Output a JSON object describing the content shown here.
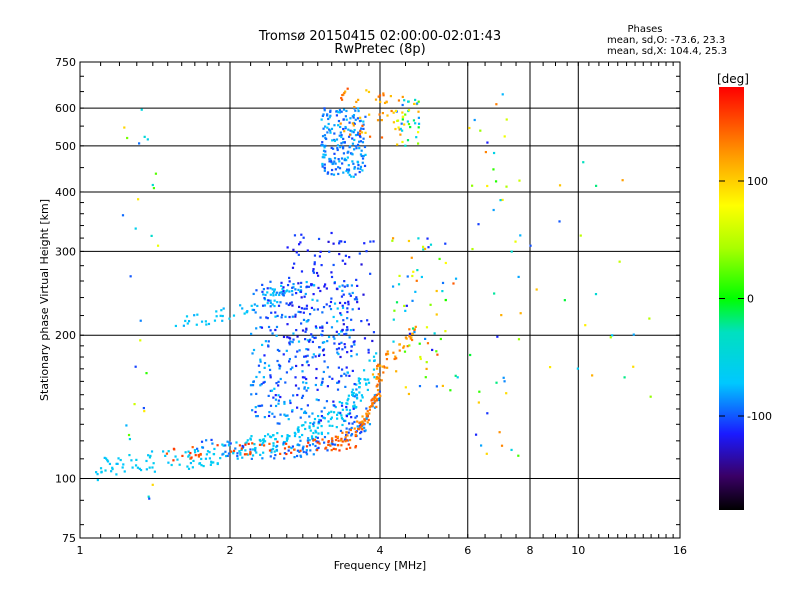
{
  "chart_data": {
    "type": "scatter",
    "title": "Tromsø 20150415 02:00:00-02:01:43",
    "subtitle": "RwPretec (8p)",
    "stats": {
      "heading": "Phases",
      "line_o": "mean, sd,O: -73.6, 23.3",
      "line_x": "mean, sd,X: 104.4, 25.3"
    },
    "xlabel": "Frequency [MHz]",
    "ylabel": "Stationary phase Virtual Height [km]",
    "x_scale": "log2",
    "y_scale": "log",
    "xlim": [
      1,
      16
    ],
    "ylim": [
      75,
      750
    ],
    "x_ticks": [
      1,
      2,
      4,
      6,
      8,
      10,
      16
    ],
    "y_ticks": [
      75,
      100,
      200,
      300,
      400,
      500,
      600,
      750
    ],
    "x_grid": [
      2,
      4,
      6,
      8,
      10
    ],
    "y_grid": [
      100,
      200,
      300,
      400,
      500,
      600
    ],
    "grid": true,
    "colorbar": {
      "label": "[deg]",
      "min": -180,
      "max": 180,
      "ticks": [
        100,
        0,
        -100
      ]
    },
    "clusters": [
      {
        "shape": "curve",
        "x": [
          1.05,
          1.3,
          1.6,
          1.9,
          2.2,
          2.5,
          2.8,
          3.1,
          3.4,
          3.7,
          3.85
        ],
        "y": [
          104,
          108,
          110,
          112,
          116,
          120,
          124,
          130,
          140,
          155,
          180
        ],
        "jx": 0.03,
        "jy": 0.05,
        "n": 260,
        "phase": [
          -75,
          -60
        ]
      },
      {
        "shape": "curve",
        "x": [
          1.7,
          2.2,
          2.7,
          3.0,
          3.3,
          3.6,
          3.8,
          4.0
        ],
        "y": [
          118,
          114,
          115,
          118,
          121,
          125,
          135,
          155
        ],
        "jx": 0.015,
        "jy": 0.04,
        "n": 120,
        "phase": [
          -110,
          -80
        ]
      },
      {
        "shape": "curve",
        "x": [
          1.5,
          1.8,
          2.2,
          2.7,
          3.0,
          3.3,
          3.6
        ],
        "y": [
          112,
          114,
          116,
          116,
          118,
          118,
          120
        ],
        "jx": 0.02,
        "jy": 0.03,
        "n": 70,
        "phase": [
          140,
          165
        ]
      },
      {
        "shape": "curve",
        "x": [
          3.2,
          3.4,
          3.6,
          3.8,
          3.95,
          4.05
        ],
        "y": [
          118,
          122,
          128,
          136,
          150,
          170
        ],
        "jx": 0.012,
        "jy": 0.03,
        "n": 80,
        "phase": [
          120,
          150
        ]
      },
      {
        "shape": "curve",
        "x": [
          3.9,
          4.1,
          4.3,
          4.5,
          4.7
        ],
        "y": [
          165,
          175,
          185,
          195,
          205
        ],
        "jx": 0.015,
        "jy": 0.03,
        "n": 40,
        "phase": [
          110,
          140
        ]
      },
      {
        "shape": "curve",
        "x": [
          1.5,
          1.7,
          1.9,
          2.1,
          2.3,
          2.5,
          2.7
        ],
        "y": [
          210,
          215,
          220,
          225,
          235,
          245,
          255
        ],
        "jx": 0.02,
        "jy": 0.03,
        "n": 60,
        "phase": [
          -80,
          -65
        ]
      },
      {
        "shape": "blob",
        "xc": [
          2.2,
          3.6
        ],
        "yc": [
          130,
          260
        ],
        "n": 380,
        "phase": [
          -120,
          -70
        ]
      },
      {
        "shape": "blob",
        "xc": [
          2.6,
          3.9
        ],
        "yc": [
          180,
          330
        ],
        "n": 120,
        "phase": [
          -125,
          -100
        ]
      },
      {
        "shape": "blob",
        "xc": [
          3.05,
          3.75
        ],
        "yc": [
          430,
          600
        ],
        "n": 200,
        "phase": [
          -105,
          -70
        ]
      },
      {
        "shape": "blob",
        "xc": [
          3.3,
          4.5
        ],
        "yc": [
          520,
          660
        ],
        "n": 50,
        "phase": [
          100,
          150
        ]
      },
      {
        "shape": "blob",
        "xc": [
          4.3,
          4.8
        ],
        "yc": [
          500,
          630
        ],
        "n": 40,
        "phase": [
          -100,
          120
        ]
      },
      {
        "shape": "blob",
        "xc": [
          4.2,
          5.8
        ],
        "yc": [
          150,
          320
        ],
        "n": 70,
        "phase": [
          -120,
          150
        ]
      },
      {
        "shape": "blob",
        "xc": [
          6.0,
          7.8
        ],
        "yc": [
          110,
          650
        ],
        "n": 45,
        "phase": [
          -120,
          140
        ]
      },
      {
        "shape": "blob",
        "xc": [
          1.2,
          1.45
        ],
        "yc": [
          90,
          610
        ],
        "n": 28,
        "phase": [
          -110,
          100
        ]
      },
      {
        "shape": "blob",
        "xc": [
          8.0,
          14.0
        ],
        "yc": [
          140,
          500
        ],
        "n": 22,
        "phase": [
          -110,
          120
        ]
      }
    ]
  }
}
